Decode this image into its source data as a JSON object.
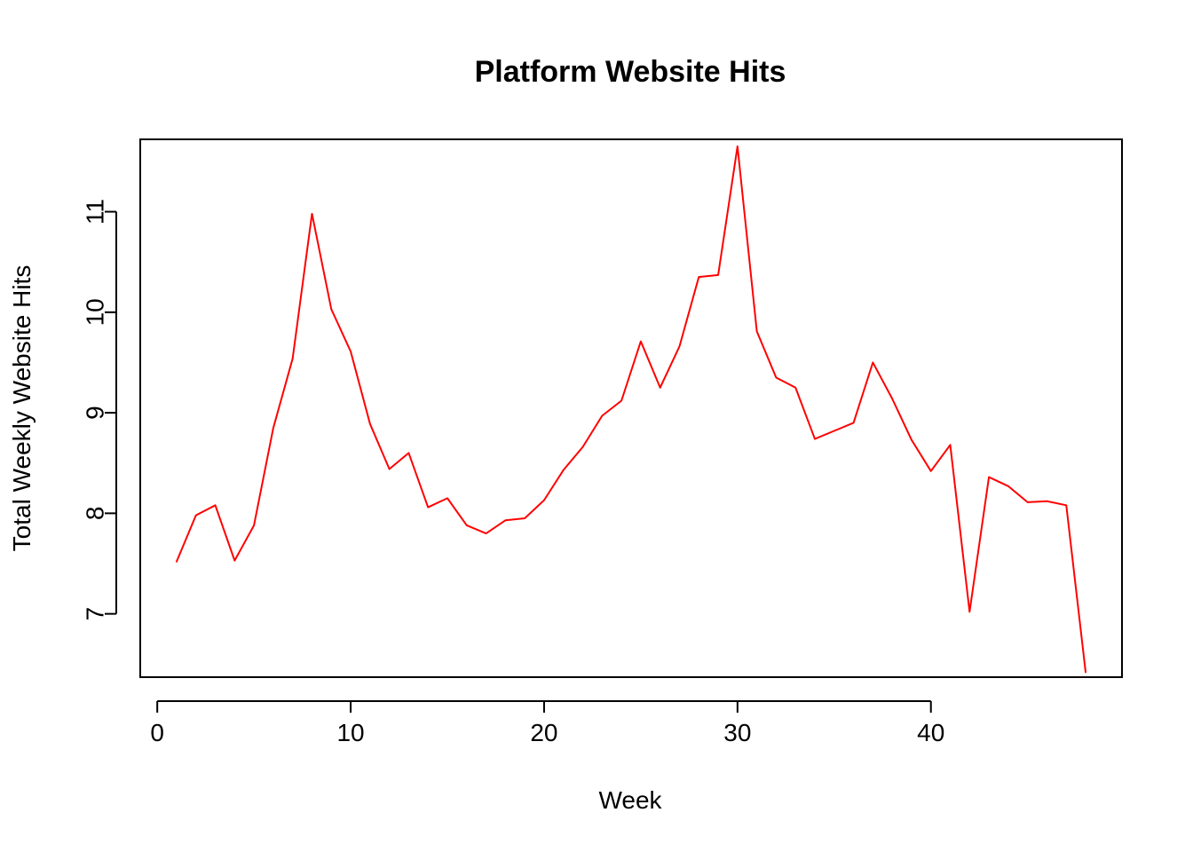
{
  "chart_data": {
    "type": "line",
    "title": "Platform Website Hits",
    "xlabel": "Week",
    "ylabel": "Total Weekly Website Hits",
    "xlim": [
      -0.88,
      49.88
    ],
    "ylim": [
      6.37,
      11.72
    ],
    "x_ticks": [
      0,
      10,
      20,
      30,
      40
    ],
    "y_ticks": [
      7,
      8,
      9,
      10,
      11
    ],
    "grid": false,
    "series": [
      {
        "color": "#ff0000",
        "x": [
          1,
          2,
          3,
          4,
          5,
          6,
          7,
          8,
          9,
          10,
          11,
          12,
          13,
          14,
          15,
          16,
          17,
          18,
          19,
          20,
          21,
          22,
          23,
          24,
          25,
          26,
          27,
          28,
          29,
          30,
          31,
          32,
          33,
          34,
          35,
          36,
          37,
          38,
          39,
          40,
          41,
          42,
          43,
          44,
          45,
          46,
          47,
          48
        ],
        "values": [
          7.52,
          7.98,
          8.08,
          7.53,
          7.88,
          8.85,
          9.54,
          10.98,
          10.03,
          9.61,
          8.89,
          8.44,
          8.6,
          8.06,
          8.15,
          7.88,
          7.8,
          7.93,
          7.95,
          8.13,
          8.43,
          8.66,
          8.97,
          9.12,
          9.71,
          9.25,
          9.66,
          10.35,
          10.37,
          11.65,
          9.81,
          9.35,
          9.25,
          8.74,
          8.82,
          8.9,
          9.5,
          9.14,
          8.73,
          8.42,
          8.68,
          7.02,
          8.36,
          8.27,
          8.11,
          8.12,
          8.08,
          6.42
        ]
      }
    ]
  }
}
